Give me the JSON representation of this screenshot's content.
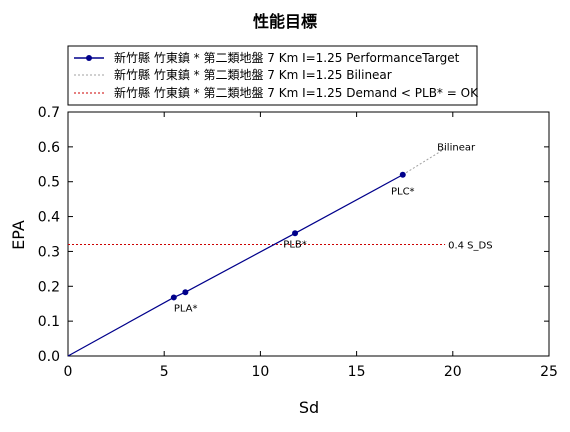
{
  "chart_data": {
    "type": "line",
    "title": "性能目標",
    "xlabel": "Sd",
    "ylabel": "EPA",
    "xlim": [
      0,
      25
    ],
    "ylim": [
      0,
      0.7
    ],
    "x_ticks": [
      "0",
      "5",
      "10",
      "15",
      "20",
      "25"
    ],
    "y_ticks": [
      "0.0",
      "0.1",
      "0.2",
      "0.3",
      "0.4",
      "0.5",
      "0.6",
      "0.7"
    ],
    "grid": false,
    "legend_position": "top",
    "colors": {
      "performance": "#00008b",
      "bilinear": "#a0a0a0",
      "demand": "#cc0000"
    },
    "series": [
      {
        "name": "新竹縣 竹東鎮 * 第二類地盤 7 Km I=1.25 PerformanceTarget",
        "style": "solid-markers",
        "x": [
          0,
          5.5,
          6.1,
          11.8,
          17.4
        ],
        "y": [
          0,
          0.168,
          0.183,
          0.352,
          0.52
        ]
      },
      {
        "name": "新竹縣 竹東鎮 * 第二類地盤 7 Km I=1.25 Bilinear",
        "style": "dotted",
        "x": [
          17.4,
          19.6
        ],
        "y": [
          0.52,
          0.595
        ]
      },
      {
        "name": "新竹縣 竹東鎮 * 第二類地盤 7 Km I=1.25 Demand < PLB* = OK",
        "style": "dotted",
        "x": [
          0,
          19.6
        ],
        "y": [
          0.32,
          0.32
        ]
      }
    ],
    "annotations": [
      {
        "text": "PLA*",
        "x": 5.5,
        "y": 0.168
      },
      {
        "text": "PLB*",
        "x": 11.8,
        "y": 0.352
      },
      {
        "text": "PLC*",
        "x": 17.4,
        "y": 0.52
      },
      {
        "text": "Bilinear",
        "x": 19.6,
        "y": 0.595
      },
      {
        "text": "0.4 S_DS",
        "x": 19.6,
        "y": 0.32
      }
    ]
  }
}
